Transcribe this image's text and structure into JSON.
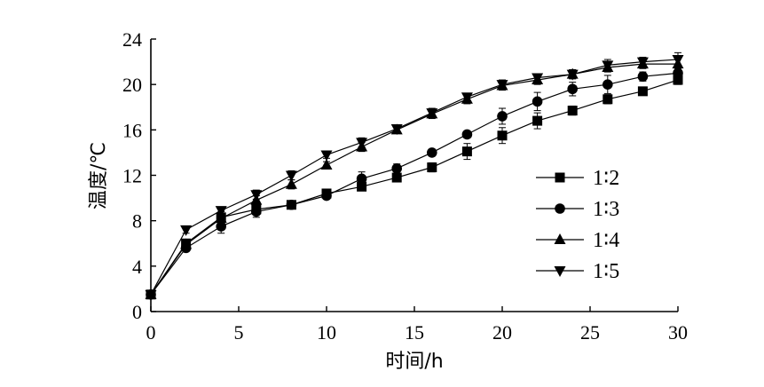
{
  "chart_data": {
    "type": "line",
    "xlabel": "时间/h",
    "ylabel": "温度/℃",
    "xlim": [
      0,
      30
    ],
    "ylim": [
      0,
      24
    ],
    "x_ticks": [
      0,
      5,
      10,
      15,
      20,
      25,
      30
    ],
    "y_ticks": [
      0,
      4,
      8,
      12,
      16,
      20,
      24
    ],
    "grid": false,
    "legend_position": "right",
    "x": [
      0,
      2,
      4,
      6,
      8,
      10,
      12,
      14,
      16,
      18,
      20,
      22,
      24,
      26,
      28,
      30
    ],
    "series": [
      {
        "name": "1∶2",
        "marker": "square",
        "values": [
          1.5,
          6.0,
          8.3,
          9.0,
          9.4,
          10.4,
          11.0,
          11.8,
          12.7,
          14.1,
          15.5,
          16.8,
          17.7,
          18.7,
          19.4,
          20.4
        ],
        "errors": [
          0.2,
          0.3,
          0.5,
          0.4,
          0.3,
          0.3,
          0.3,
          0.3,
          0.4,
          0.7,
          0.7,
          0.7,
          0.4,
          0.4,
          0.3,
          0.4
        ]
      },
      {
        "name": "1∶3",
        "marker": "circle",
        "values": [
          1.5,
          5.6,
          7.5,
          8.8,
          9.4,
          10.2,
          11.7,
          12.6,
          14.0,
          15.6,
          17.2,
          18.5,
          19.6,
          20.0,
          20.7,
          21.0
        ],
        "errors": [
          0.2,
          0.3,
          0.6,
          0.5,
          0.3,
          0.3,
          0.6,
          0.4,
          0.3,
          0.3,
          0.7,
          0.8,
          0.6,
          0.8,
          0.4,
          0.4
        ]
      },
      {
        "name": "1∶4",
        "marker": "triangle-up",
        "values": [
          1.5,
          5.9,
          8.2,
          9.8,
          11.2,
          12.9,
          14.5,
          16.0,
          17.4,
          18.7,
          19.9,
          20.4,
          20.9,
          21.5,
          21.8,
          21.8
        ],
        "errors": [
          0.2,
          0.3,
          0.4,
          0.4,
          0.4,
          0.3,
          0.4,
          0.3,
          0.4,
          0.4,
          0.4,
          0.4,
          0.4,
          0.4,
          0.4,
          0.6
        ]
      },
      {
        "name": "1∶5",
        "marker": "triangle-down",
        "values": [
          1.5,
          7.2,
          8.9,
          10.3,
          12.0,
          13.8,
          14.9,
          16.1,
          17.5,
          18.9,
          20.0,
          20.6,
          20.9,
          21.7,
          22.0,
          22.2
        ],
        "errors": [
          0.2,
          0.3,
          0.3,
          0.4,
          0.4,
          0.3,
          0.4,
          0.3,
          0.4,
          0.3,
          0.4,
          0.3,
          0.4,
          0.5,
          0.4,
          0.6
        ]
      }
    ]
  }
}
